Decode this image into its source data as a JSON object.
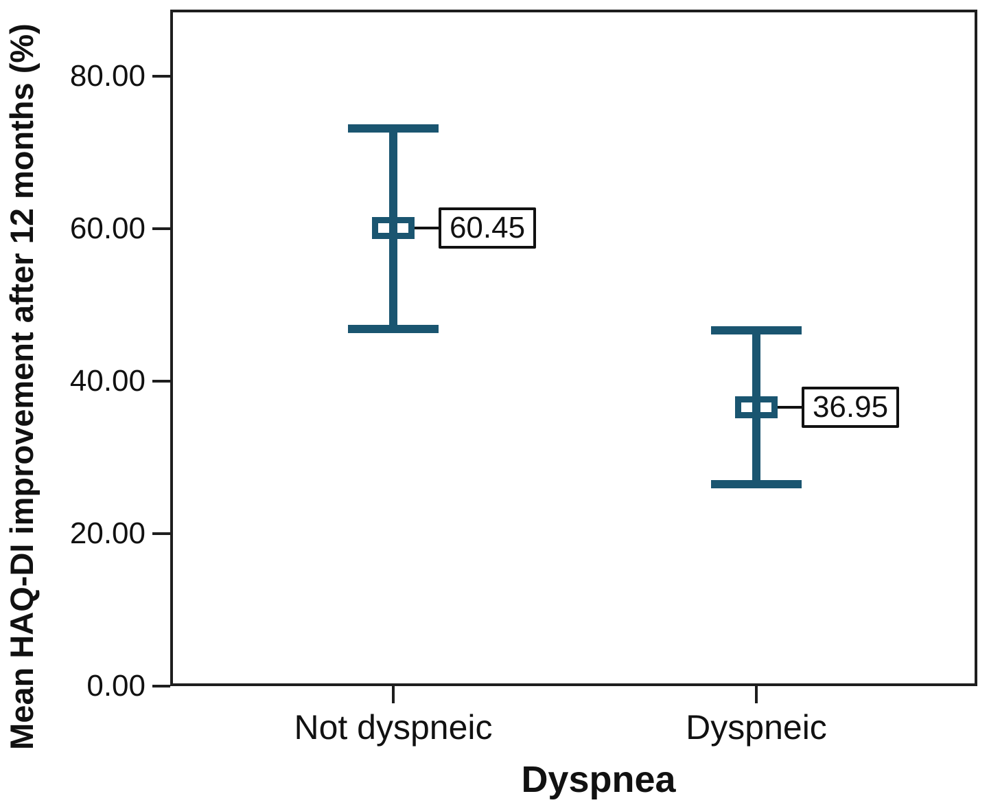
{
  "chart_data": {
    "type": "errorbar",
    "title": "",
    "xlabel": "Dyspnea",
    "ylabel": "Mean HAQ-DI improvement after 12 months (%)",
    "categories": [
      "Not dyspneic",
      "Dyspneic"
    ],
    "series": [
      {
        "category": "Not dyspneic",
        "mean": 60.45,
        "label": "60.45",
        "ci_low": 47.2,
        "ci_high": 73.5
      },
      {
        "category": "Dyspneic",
        "mean": 36.95,
        "label": "36.95",
        "ci_low": 26.8,
        "ci_high": 47.0
      }
    ],
    "ylim": [
      0,
      88.7
    ],
    "yticks": [
      0,
      20,
      40,
      60,
      80
    ],
    "ytick_labels": [
      "0.00",
      "20.00",
      "40.00",
      "60.00",
      "80.00"
    ],
    "grid": false,
    "legend": false,
    "marker_color": "#1a5570",
    "frame_color": "#1e1e1e",
    "text_color": "#111111"
  }
}
